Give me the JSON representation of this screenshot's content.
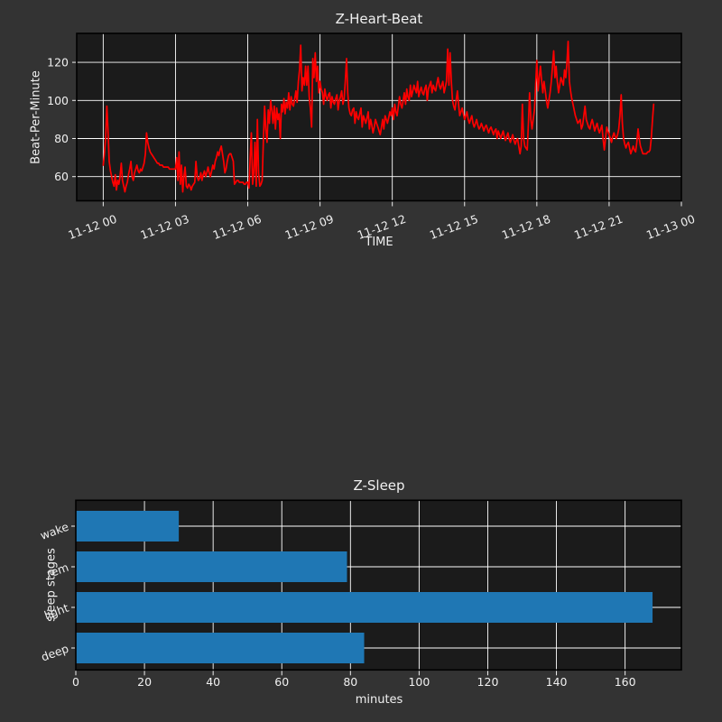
{
  "figure": {
    "bg_color": "#333333",
    "plot_bg_color": "#1b1b1b",
    "grid_color": "#ffffff",
    "text_color": "#f0f0f0",
    "spine_color": "#000000"
  },
  "chart_data": [
    {
      "type": "line",
      "title": "Z-Heart-Beat",
      "xlabel": "TIME",
      "ylabel": "Beat-Per-Minute",
      "line_color": "#ff0000",
      "x_tick_labels": [
        "11-12 00",
        "11-12 03",
        "11-12 06",
        "11-12 09",
        "11-12 12",
        "11-12 15",
        "11-12 18",
        "11-12 21",
        "11-13 00"
      ],
      "x_tick_hours": [
        0,
        3,
        6,
        9,
        12,
        15,
        18,
        21,
        24
      ],
      "y_ticks": [
        60,
        80,
        100,
        120
      ],
      "xlim_hours": [
        -1.1,
        24.0
      ],
      "ylim": [
        47.3,
        135.2
      ],
      "x_start_hours": 0.0,
      "x_step_hours": 0.05,
      "bpm": [
        66,
        72,
        80,
        97,
        84,
        68,
        63,
        60,
        57,
        55,
        61,
        53,
        58,
        56,
        60,
        67,
        58,
        55,
        52,
        55,
        57,
        61,
        64,
        68,
        60,
        58,
        62,
        64,
        66,
        63,
        62,
        64,
        63,
        65,
        67,
        72,
        83,
        78,
        75,
        73,
        72,
        71,
        70,
        69,
        68,
        67,
        67,
        66,
        66,
        66,
        65,
        65,
        65,
        65,
        65,
        64,
        64,
        64,
        64,
        64,
        64,
        70,
        58,
        73,
        56,
        66,
        52,
        60,
        65,
        55,
        54,
        56,
        55,
        53,
        55,
        56,
        57,
        68,
        60,
        58,
        59,
        62,
        58,
        61,
        63,
        60,
        62,
        65,
        62,
        60,
        63,
        66,
        64,
        68,
        70,
        73,
        71,
        74,
        76,
        72,
        68,
        62,
        64,
        68,
        71,
        72,
        72,
        70,
        68,
        56,
        57,
        58,
        58,
        57,
        57,
        57,
        57,
        56,
        56,
        57,
        57,
        54,
        70,
        83,
        56,
        62,
        78,
        55,
        90,
        62,
        55,
        56,
        58,
        80,
        97,
        85,
        78,
        95,
        88,
        100,
        95,
        88,
        97,
        85,
        96,
        90,
        93,
        80,
        98,
        94,
        101,
        93,
        99,
        96,
        104,
        95,
        102,
        98,
        97,
        101,
        105,
        99,
        110,
        116,
        129,
        105,
        112,
        108,
        118,
        108,
        118,
        102,
        96,
        86,
        122,
        112,
        125,
        110,
        118,
        104,
        110,
        106,
        104,
        98,
        106,
        102,
        100,
        103,
        104,
        96,
        102,
        99,
        98,
        101,
        103,
        95,
        100,
        102,
        105,
        98,
        101,
        110,
        122,
        104,
        96,
        93,
        92,
        95,
        96,
        88,
        94,
        91,
        90,
        93,
        96,
        86,
        92,
        90,
        88,
        91,
        94,
        85,
        90,
        87,
        83,
        86,
        90,
        88,
        86,
        84,
        82,
        86,
        90,
        85,
        92,
        90,
        88,
        91,
        94,
        92,
        96,
        90,
        98,
        94,
        92,
        97,
        102,
        98,
        96,
        100,
        104,
        98,
        106,
        102,
        100,
        108,
        102,
        105,
        108,
        106,
        104,
        110,
        102,
        105,
        107,
        104,
        103,
        106,
        108,
        100,
        106,
        108,
        110,
        104,
        108,
        106,
        105,
        109,
        112,
        108,
        106,
        108,
        110,
        104,
        107,
        110,
        127,
        108,
        125,
        110,
        100,
        97,
        95,
        100,
        105,
        98,
        92,
        94,
        96,
        93,
        90,
        92,
        94,
        90,
        88,
        90,
        92,
        88,
        86,
        88,
        90,
        87,
        85,
        86,
        88,
        86,
        84,
        86,
        87,
        85,
        83,
        85,
        86,
        84,
        82,
        84,
        85,
        80,
        84,
        82,
        80,
        82,
        84,
        81,
        79,
        81,
        83,
        80,
        78,
        80,
        82,
        79,
        77,
        79,
        80,
        76,
        72,
        76,
        98,
        80,
        76,
        75,
        74,
        88,
        104,
        90,
        85,
        90,
        95,
        108,
        121,
        105,
        112,
        118,
        110,
        104,
        110,
        105,
        100,
        96,
        100,
        104,
        110,
        118,
        126,
        112,
        118,
        110,
        104,
        108,
        112,
        110,
        108,
        116,
        112,
        120,
        131,
        110,
        105,
        101,
        98,
        95,
        92,
        90,
        88,
        89,
        90,
        85,
        87,
        92,
        97,
        90,
        88,
        86,
        85,
        88,
        90,
        87,
        84,
        86,
        88,
        85,
        83,
        85,
        87,
        80,
        74,
        80,
        86,
        84,
        82,
        80,
        78,
        81,
        83,
        81,
        80,
        82,
        85,
        92,
        103,
        88,
        80,
        77,
        75,
        77,
        78,
        75,
        72,
        74,
        76,
        74,
        73,
        78,
        85,
        80,
        76,
        74,
        72,
        72,
        72,
        72,
        73,
        73,
        74,
        80,
        90,
        98
      ]
    },
    {
      "type": "bar",
      "title": "Z-Sleep",
      "xlabel": "minutes",
      "ylabel": "sleep stages",
      "bar_color": "#1f77b4",
      "categories": [
        "wake",
        "rem",
        "light",
        "deep"
      ],
      "values": [
        30,
        79,
        168,
        84
      ],
      "x_ticks": [
        0,
        20,
        40,
        60,
        80,
        100,
        120,
        140,
        160
      ],
      "xlim": [
        0,
        176.4
      ]
    }
  ]
}
